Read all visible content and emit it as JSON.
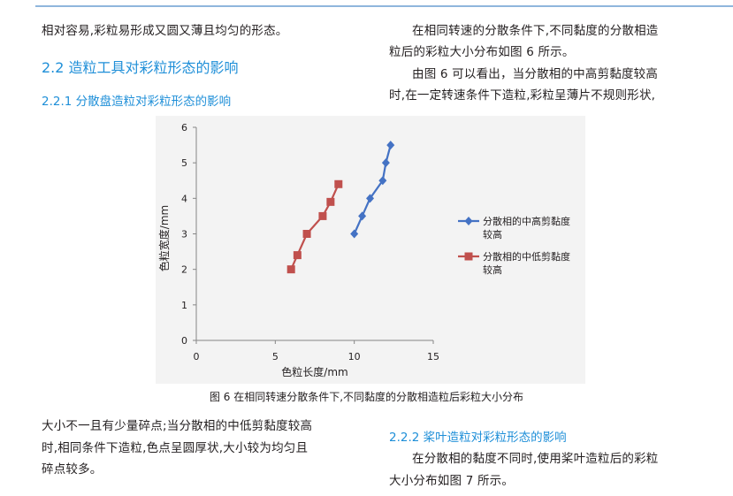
{
  "text": {
    "top_left": "相对容易,彩粒易形成又圆又薄且均匀的形态。",
    "h2": "2.2 造粒工具对彩粒形态的影响",
    "h3_221": "2.2.1 分散盘造粒对彩粒形态的影响",
    "right_p1_l1": "在相同转速的分散条件下,不同黏度的分散相造",
    "right_p1_l2": "粒后的彩粒大小分布如图 6 所示。",
    "right_p2_l1": "由图 6 可以看出，当分散相的中高剪黏度较高",
    "right_p2_l2": "时,在一定转速条件下造粒,彩粒呈薄片不规则形状,",
    "caption": "图 6 在相同转速分散条件下,不同黏度的分散相造粒后彩粒大小分布",
    "bottom_left_l1": "大小不一且有少量碎点;当分散相的中低剪黏度较高",
    "bottom_left_l2": "时,相同条件下造粒,色点呈圆厚状,大小较为均匀且",
    "bottom_left_l3": "碎点较多。",
    "h3_222": "2.2.2 桨叶造粒对彩粒形态的影响",
    "bottom_right_l1": "在分散相的黏度不同时,使用桨叶造粒后的彩粒",
    "bottom_right_l2": "大小分布如图 7 所示。"
  },
  "colors": {
    "heading": "#1f8fd8",
    "series1": "#4472c4",
    "series2": "#c0504d"
  },
  "chart_data": {
    "type": "line",
    "xlabel": "色粒长度/mm",
    "ylabel": "色粒宽度/mm",
    "xlim": [
      0,
      15
    ],
    "ylim": [
      0,
      6
    ],
    "xticks": [
      "0",
      "5",
      "10",
      "15"
    ],
    "yticks": [
      "0",
      "1",
      "2",
      "3",
      "4",
      "5",
      "6"
    ],
    "grid": false,
    "legend_position": "right",
    "series": [
      {
        "name_line1": "分散相的中高剪黏度",
        "name_line2": "较高",
        "marker": "diamond",
        "x": [
          10.0,
          10.5,
          11.0,
          11.8,
          12.0,
          12.3
        ],
        "y": [
          3.0,
          3.5,
          4.0,
          4.5,
          5.0,
          5.5
        ]
      },
      {
        "name_line1": "分散相的中低剪黏度",
        "name_line2": "较高",
        "marker": "square",
        "x": [
          6.0,
          6.4,
          7.0,
          8.0,
          8.5,
          9.0
        ],
        "y": [
          2.0,
          2.4,
          3.0,
          3.5,
          3.9,
          4.4
        ]
      }
    ]
  }
}
